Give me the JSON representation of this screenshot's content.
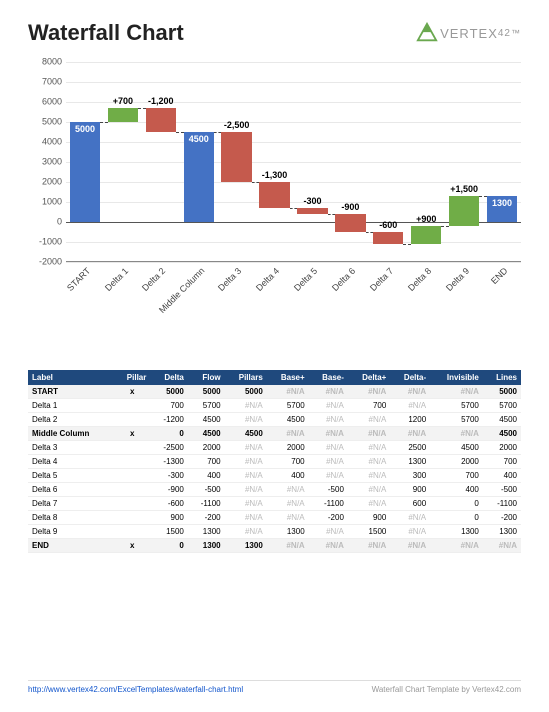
{
  "title": "Waterfall Chart",
  "brand": "VERTEX",
  "brandSuffix": "42",
  "chart": {
    "type": "waterfall-bar",
    "ylim": [
      -2000,
      8000
    ],
    "ytick_step": 1000,
    "background_color": "#ffffff",
    "grid_color": "#e8e8e8",
    "axis_color": "#555555",
    "label_fontsize": 9,
    "colors": {
      "pillar": "#4472c4",
      "increase": "#70ad47",
      "decrease": "#c55a4d",
      "label_increase": "#000000",
      "label_decrease": "#000000",
      "label_pillar": "#ffffff"
    },
    "items": [
      {
        "label": "START",
        "type": "pillar",
        "from": 0,
        "to": 5000,
        "display": "5000"
      },
      {
        "label": "Delta 1",
        "type": "increase",
        "from": 5000,
        "to": 5700,
        "display": "+700"
      },
      {
        "label": "Delta 2",
        "type": "decrease",
        "from": 5700,
        "to": 4500,
        "display": "-1,200"
      },
      {
        "label": "Middle Column",
        "type": "pillar",
        "from": 0,
        "to": 4500,
        "display": "4500"
      },
      {
        "label": "Delta 3",
        "type": "decrease",
        "from": 4500,
        "to": 2000,
        "display": "-2,500"
      },
      {
        "label": "Delta 4",
        "type": "decrease",
        "from": 2000,
        "to": 700,
        "display": "-1,300"
      },
      {
        "label": "Delta 5",
        "type": "decrease",
        "from": 700,
        "to": 400,
        "display": "-300"
      },
      {
        "label": "Delta 6",
        "type": "decrease",
        "from": 400,
        "to": -500,
        "display": "-900"
      },
      {
        "label": "Delta 7",
        "type": "decrease",
        "from": -500,
        "to": -1100,
        "display": "-600"
      },
      {
        "label": "Delta 8",
        "type": "increase",
        "from": -1100,
        "to": -200,
        "display": "+900"
      },
      {
        "label": "Delta 9",
        "type": "increase",
        "from": -200,
        "to": 1300,
        "display": "+1,500"
      },
      {
        "label": "END",
        "type": "pillar",
        "from": 0,
        "to": 1300,
        "display": "1300"
      }
    ]
  },
  "table": {
    "headers": [
      "Label",
      "Pillar",
      "Delta",
      "Flow",
      "Pillars",
      "Base+",
      "Base-",
      "Delta+",
      "Delta-",
      "Invisible",
      "Lines"
    ],
    "bold_rows": [
      0,
      3,
      11
    ],
    "rows": [
      [
        "START",
        "x",
        "5000",
        "5000",
        "5000",
        "#N/A",
        "#N/A",
        "#N/A",
        "#N/A",
        "#N/A",
        "5000"
      ],
      [
        "Delta 1",
        "",
        "700",
        "5700",
        "#N/A",
        "5700",
        "#N/A",
        "700",
        "#N/A",
        "5700",
        "5700"
      ],
      [
        "Delta 2",
        "",
        "-1200",
        "4500",
        "#N/A",
        "4500",
        "#N/A",
        "#N/A",
        "1200",
        "5700",
        "4500"
      ],
      [
        "Middle Column",
        "x",
        "0",
        "4500",
        "4500",
        "#N/A",
        "#N/A",
        "#N/A",
        "#N/A",
        "#N/A",
        "4500"
      ],
      [
        "Delta 3",
        "",
        "-2500",
        "2000",
        "#N/A",
        "2000",
        "#N/A",
        "#N/A",
        "2500",
        "4500",
        "2000"
      ],
      [
        "Delta 4",
        "",
        "-1300",
        "700",
        "#N/A",
        "700",
        "#N/A",
        "#N/A",
        "1300",
        "2000",
        "700"
      ],
      [
        "Delta 5",
        "",
        "-300",
        "400",
        "#N/A",
        "400",
        "#N/A",
        "#N/A",
        "300",
        "700",
        "400"
      ],
      [
        "Delta 6",
        "",
        "-900",
        "-500",
        "#N/A",
        "#N/A",
        "-500",
        "#N/A",
        "900",
        "400",
        "-500"
      ],
      [
        "Delta 7",
        "",
        "-600",
        "-1100",
        "#N/A",
        "#N/A",
        "-1100",
        "#N/A",
        "600",
        "0",
        "-1100"
      ],
      [
        "Delta 8",
        "",
        "900",
        "-200",
        "#N/A",
        "#N/A",
        "-200",
        "900",
        "#N/A",
        "0",
        "-200"
      ],
      [
        "Delta 9",
        "",
        "1500",
        "1300",
        "#N/A",
        "1300",
        "#N/A",
        "1500",
        "#N/A",
        "1300",
        "1300"
      ],
      [
        "END",
        "x",
        "0",
        "1300",
        "1300",
        "#N/A",
        "#N/A",
        "#N/A",
        "#N/A",
        "#N/A",
        "#N/A"
      ]
    ]
  },
  "footer": {
    "left": "http://www.vertex42.com/ExcelTemplates/waterfall-chart.html",
    "right": "Waterfall Chart Template by Vertex42.com"
  }
}
